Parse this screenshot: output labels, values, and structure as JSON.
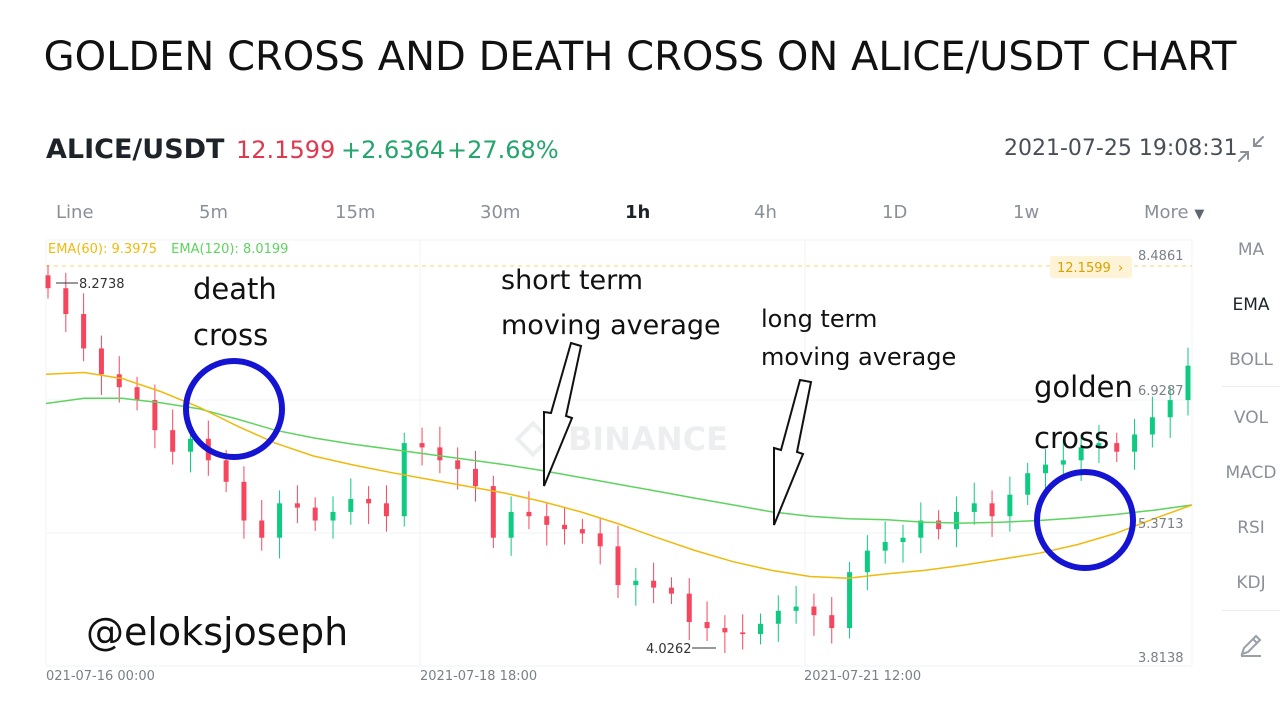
{
  "title": "GOLDEN CROSS AND DEATH CROSS ON ALICE/USDT CHART",
  "header": {
    "pair": "ALICE/USDT",
    "price": "12.1599",
    "change": "+2.6364",
    "change_pct": "+27.68%",
    "datetime": "2021-07-25 19:08:31",
    "collapse_icon": "collapse-arrows-icon"
  },
  "intervals": [
    "Line",
    "5m",
    "15m",
    "30m",
    "1h",
    "4h",
    "1D",
    "1w",
    "More"
  ],
  "active_interval": "1h",
  "indicators": [
    "MA",
    "EMA",
    "BOLL",
    "VOL",
    "MACD",
    "RSI",
    "KDJ"
  ],
  "active_indicator": "EMA",
  "draw_icon": "pencil-icon",
  "ema_legend": {
    "ema60": "EMA(60): 9.3975",
    "ema120": "EMA(120): 8.0199"
  },
  "colors": {
    "up": "#0ecb81",
    "down": "#f6465d",
    "ema60": "#f0b90b",
    "ema120": "#5ed35f",
    "circle": "#1414d2"
  },
  "annotations": {
    "death": [
      "death",
      "cross"
    ],
    "short": [
      "short term",
      "moving average"
    ],
    "long": [
      "long term",
      "moving average"
    ],
    "golden": [
      "golden",
      "cross"
    ],
    "watermark": "@eloksjoseph",
    "brand": "BINANCE"
  },
  "chart_data": {
    "type": "line",
    "title": "",
    "x_ticks": [
      "021-07-16 00:00",
      "2021-07-18 18:00",
      "2021-07-21 12:00"
    ],
    "y_ticks": [
      "8.4861",
      "6.9287",
      "5.3713",
      "3.8138"
    ],
    "ylim": [
      3.8138,
      8.4861
    ],
    "last_price_tag": "12.1599",
    "high_label": "8.2738",
    "low_label": "4.0262",
    "series": [
      {
        "name": "EMA(60)",
        "values": [
          7.1,
          7.12,
          7.05,
          6.9,
          6.72,
          6.5,
          6.3,
          6.15,
          6.05,
          5.96,
          5.88,
          5.8,
          5.72,
          5.62,
          5.5,
          5.36,
          5.2,
          5.05,
          4.92,
          4.82,
          4.75,
          4.73,
          4.78,
          4.82,
          4.88,
          4.95,
          5.02,
          5.12,
          5.25,
          5.42,
          5.58
        ]
      },
      {
        "name": "EMA(120)",
        "values": [
          6.76,
          6.82,
          6.82,
          6.77,
          6.7,
          6.58,
          6.45,
          6.36,
          6.29,
          6.23,
          6.17,
          6.11,
          6.05,
          5.98,
          5.9,
          5.82,
          5.74,
          5.66,
          5.58,
          5.5,
          5.45,
          5.42,
          5.41,
          5.38,
          5.37,
          5.38,
          5.4,
          5.43,
          5.47,
          5.52,
          5.58
        ]
      }
    ],
    "close": [
      8.1,
      7.8,
      7.4,
      7.1,
      6.95,
      6.8,
      6.45,
      6.2,
      6.35,
      6.1,
      5.85,
      5.4,
      5.2,
      5.6,
      5.55,
      5.4,
      5.5,
      5.65,
      5.6,
      5.45,
      6.3,
      6.25,
      6.1,
      6.0,
      5.8,
      5.2,
      5.5,
      5.45,
      5.35,
      5.3,
      5.25,
      5.1,
      4.65,
      4.7,
      4.62,
      4.55,
      4.22,
      4.15,
      4.1,
      4.08,
      4.2,
      4.35,
      4.4,
      4.3,
      4.15,
      4.8,
      5.05,
      5.15,
      5.2,
      5.4,
      5.3,
      5.5,
      5.6,
      5.45,
      5.7,
      5.95,
      6.05,
      6.1,
      6.25,
      6.3,
      6.2,
      6.4,
      6.6,
      6.8,
      7.2
    ]
  }
}
